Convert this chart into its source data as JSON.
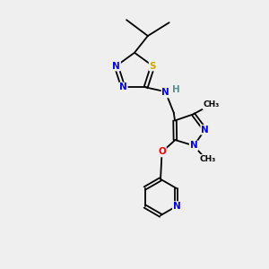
{
  "background_color": "#efefef",
  "bond_color": "#000000",
  "atom_colors": {
    "N": "#0000ff",
    "S": "#ccaa00",
    "O": "#ff0000",
    "H": "#5a9090",
    "C": "#000000"
  },
  "figsize": [
    3.0,
    3.0
  ],
  "dpi": 100
}
